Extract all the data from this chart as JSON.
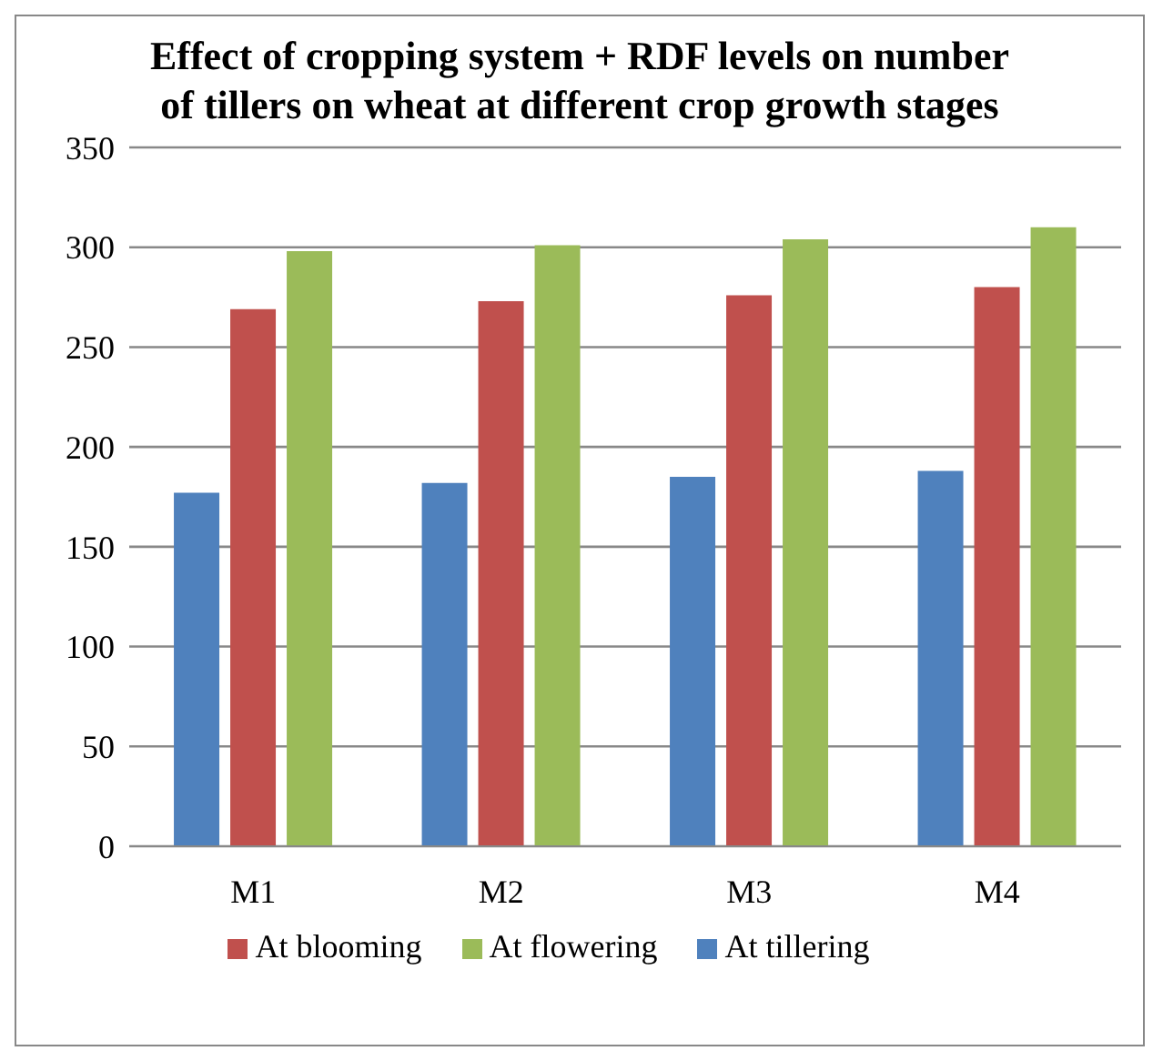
{
  "chart_data": {
    "type": "bar",
    "title": "Effect of cropping system + RDF levels on number of tillers on wheat at different crop growth stages",
    "categories": [
      "M1",
      "M2",
      "M3",
      "M4"
    ],
    "series": [
      {
        "name": "At tillering",
        "color": "#4f81bd",
        "values": [
          177,
          182,
          185,
          188
        ]
      },
      {
        "name": "At blooming",
        "color": "#c0504d",
        "values": [
          269,
          273,
          276,
          280
        ]
      },
      {
        "name": "At flowering",
        "color": "#9bbb59",
        "values": [
          298,
          301,
          304,
          310
        ]
      }
    ],
    "ylim": [
      0,
      350
    ],
    "yticks": [
      0,
      50,
      100,
      150,
      200,
      250,
      300,
      350
    ],
    "grid": "y",
    "legend": "bottom"
  }
}
